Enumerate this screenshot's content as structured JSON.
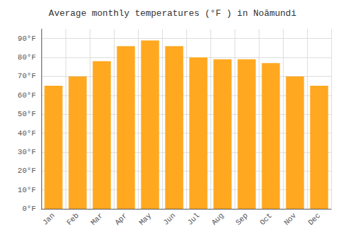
{
  "chart_data": {
    "type": "bar",
    "title": "Average monthly temperatures (°F ) in Noāmundi",
    "categories": [
      "Jan",
      "Feb",
      "Mar",
      "Apr",
      "May",
      "Jun",
      "Jul",
      "Aug",
      "Sep",
      "Oct",
      "Nov",
      "Dec"
    ],
    "values": [
      65,
      70,
      78,
      86,
      89,
      86,
      80,
      79,
      79,
      77,
      70,
      65
    ],
    "color": "#FFA820",
    "ylim": [
      0,
      95
    ],
    "yticks": [
      {
        "value": 0,
        "label": "0°F"
      },
      {
        "value": 10,
        "label": "10°F"
      },
      {
        "value": 20,
        "label": "20°F"
      },
      {
        "value": 30,
        "label": "30°F"
      },
      {
        "value": 40,
        "label": "40°F"
      },
      {
        "value": 50,
        "label": "50°F"
      },
      {
        "value": 60,
        "label": "60°F"
      },
      {
        "value": 70,
        "label": "70°F"
      },
      {
        "value": 80,
        "label": "80°F"
      },
      {
        "value": 90,
        "label": "90°F"
      }
    ],
    "grid": true
  }
}
